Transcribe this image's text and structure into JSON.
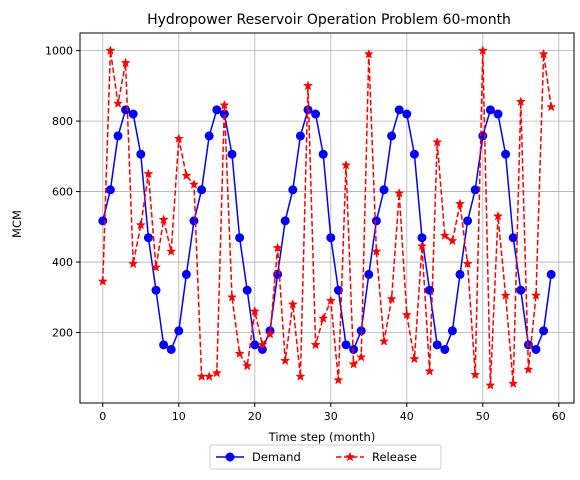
{
  "chart_data": {
    "type": "line",
    "title": "Hydropower Reservoir Operation Problem 60-month",
    "xlabel": "Time step (month)",
    "ylabel": "MCM",
    "xlim": [
      -3,
      62
    ],
    "ylim": [
      0,
      1050
    ],
    "x_ticks": [
      0,
      10,
      20,
      30,
      40,
      50,
      60
    ],
    "y_ticks": [
      200,
      400,
      600,
      800,
      1000
    ],
    "grid": true,
    "legend_position": "bottom-center",
    "x": [
      0,
      1,
      2,
      3,
      4,
      5,
      6,
      7,
      8,
      9,
      10,
      11,
      12,
      13,
      14,
      15,
      16,
      17,
      18,
      19,
      20,
      21,
      22,
      23,
      24,
      25,
      26,
      27,
      28,
      29,
      30,
      31,
      32,
      33,
      34,
      35,
      36,
      37,
      38,
      39,
      40,
      41,
      42,
      43,
      44,
      45,
      46,
      47,
      48,
      49,
      50,
      51,
      52,
      53,
      54,
      55,
      56,
      57,
      58,
      59
    ],
    "series": [
      {
        "name": "Demand",
        "color": "#0000ff",
        "linestyle": "solid",
        "marker": "circle",
        "values": [
          517,
          605,
          758,
          832,
          820,
          706,
          469,
          320,
          165,
          152,
          205,
          365,
          517,
          605,
          758,
          832,
          820,
          706,
          469,
          320,
          165,
          152,
          205,
          365,
          517,
          605,
          758,
          832,
          820,
          706,
          469,
          320,
          165,
          152,
          205,
          365,
          517,
          605,
          758,
          832,
          820,
          706,
          469,
          320,
          165,
          152,
          205,
          365,
          517,
          605,
          758,
          832,
          820,
          706,
          469,
          320,
          165,
          152,
          205,
          365
        ]
      },
      {
        "name": "Release",
        "color": "#ff0000",
        "linestyle": "dashed",
        "marker": "star",
        "values": [
          345,
          1000,
          850,
          965,
          395,
          505,
          650,
          385,
          520,
          430,
          750,
          645,
          620,
          75,
          75,
          85,
          845,
          300,
          140,
          105,
          260,
          165,
          195,
          440,
          120,
          280,
          75,
          900,
          165,
          240,
          290,
          65,
          675,
          110,
          130,
          990,
          430,
          175,
          295,
          595,
          250,
          125,
          445,
          90,
          740,
          475,
          460,
          565,
          395,
          80,
          1000,
          50,
          530,
          305,
          55,
          855,
          95,
          305,
          990,
          840
        ]
      }
    ]
  }
}
